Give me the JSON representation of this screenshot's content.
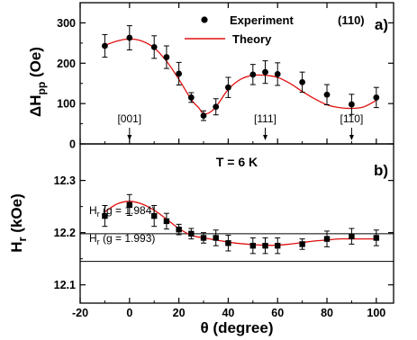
{
  "chart_data": [
    {
      "panel": "a",
      "type": "scatter",
      "panel_label": "a)",
      "ylabel_main": "ΔH",
      "ylabel_sub": "pp",
      "ylabel_unit": "(Oe)",
      "ylim": [
        0,
        350
      ],
      "yticks": [
        0,
        100,
        200,
        300
      ],
      "legend": {
        "experiment": "Experiment",
        "theory": "Theory",
        "placement": "top-right"
      },
      "annotation_plane": "(110)",
      "direction_labels": [
        {
          "text": "[001]",
          "x": 0
        },
        {
          "text": "[111]",
          "x": 55
        },
        {
          "text": "[110]",
          "x": 90
        }
      ],
      "experiment": {
        "x": [
          -10,
          0,
          10,
          15,
          20,
          25,
          30,
          35,
          40,
          50,
          55,
          60,
          70,
          80,
          90,
          100
        ],
        "y": [
          243,
          263,
          240,
          215,
          174,
          115,
          70,
          92,
          140,
          172,
          178,
          173,
          153,
          122,
          98,
          115
        ],
        "yerr": [
          28,
          30,
          28,
          28,
          28,
          12,
          12,
          20,
          25,
          25,
          28,
          28,
          25,
          25,
          25,
          25
        ]
      },
      "theory": {
        "x": [
          -10,
          -5,
          0,
          5,
          10,
          15,
          20,
          25,
          28,
          30,
          33,
          36,
          40,
          45,
          50,
          55,
          60,
          65,
          70,
          75,
          80,
          85,
          90,
          95,
          100
        ],
        "y": [
          244,
          255,
          260,
          255,
          238,
          205,
          160,
          110,
          90,
          75,
          80,
          100,
          135,
          160,
          170,
          170,
          165,
          150,
          130,
          112,
          97,
          90,
          88,
          92,
          108
        ]
      }
    },
    {
      "panel": "b",
      "type": "scatter",
      "panel_label": "b)",
      "temperature_label": "T = 6 K",
      "ylabel_main": "H",
      "ylabel_sub": "r",
      "ylabel_unit": "(kOe)",
      "ylim": [
        12.065,
        12.37
      ],
      "yticks": [
        12.1,
        12.2,
        12.3
      ],
      "xlabel": "θ (degree)",
      "xlim": [
        -20,
        107
      ],
      "xticks": [
        -20,
        0,
        20,
        40,
        60,
        80,
        100
      ],
      "reference_lines": [
        {
          "y": 12.198,
          "label_main": "H",
          "label_sub": "r",
          "label_rest": "(g = 1.984)"
        },
        {
          "y": 12.145,
          "label_main": "H",
          "label_sub": "r",
          "label_rest": "(g = 1.993)"
        }
      ],
      "experiment": {
        "x": [
          -10,
          0,
          10,
          15,
          20,
          25,
          30,
          35,
          40,
          50,
          55,
          60,
          70,
          80,
          90,
          100
        ],
        "y": [
          12.232,
          12.253,
          12.232,
          12.222,
          12.206,
          12.198,
          12.19,
          12.19,
          12.18,
          12.175,
          12.175,
          12.175,
          12.178,
          12.188,
          12.193,
          12.19
        ],
        "yerr": [
          0.02,
          0.02,
          0.02,
          0.015,
          0.01,
          0.01,
          0.01,
          0.015,
          0.015,
          0.015,
          0.015,
          0.015,
          0.01,
          0.015,
          0.015,
          0.015
        ]
      },
      "theory": {
        "x": [
          -10,
          -5,
          0,
          5,
          10,
          15,
          20,
          25,
          30,
          35,
          40,
          45,
          50,
          55,
          60,
          65,
          70,
          75,
          80,
          85,
          90,
          95,
          100
        ],
        "y": [
          12.24,
          12.255,
          12.26,
          12.255,
          12.243,
          12.226,
          12.208,
          12.195,
          12.19,
          12.186,
          12.182,
          12.179,
          12.177,
          12.176,
          12.176,
          12.178,
          12.181,
          12.184,
          12.186,
          12.188,
          12.188,
          12.188,
          12.188
        ]
      }
    }
  ],
  "colors": {
    "experiment": "#000000",
    "theory": "#e01010",
    "axes": "#000000"
  }
}
